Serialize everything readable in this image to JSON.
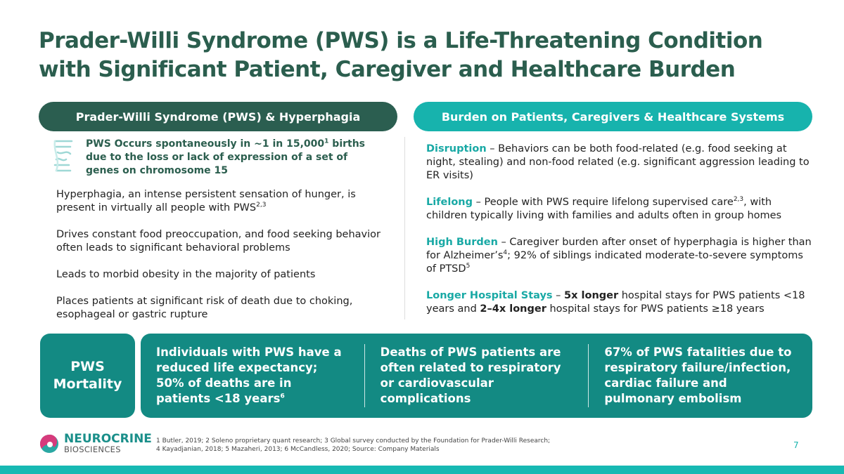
{
  "title": "Prader-Willi Syndrome (PWS) is a Life-Threatening Condition with Significant Patient, Caregiver and Healthcare Burden",
  "left": {
    "header": "Prader-Willi Syndrome (PWS) & Hyperphagia",
    "callout": {
      "pre": "PWS Occurs spontaneously in ~1 in 15,000",
      "sup": "1",
      "post": " births due to the loss or lack of expression of a set of genes on chromosome 15"
    },
    "items": [
      {
        "text": "Hyperphagia, an intense persistent sensation of hunger, is present in virtually all people with PWS",
        "sup": "2,3"
      },
      {
        "text": "Drives constant food preoccupation, and food seeking behavior often leads to significant behavioral problems"
      },
      {
        "text": "Leads to morbid obesity in the majority of patients"
      },
      {
        "text": "Places patients at significant risk of death due to choking, esophageal or gastric rupture"
      }
    ]
  },
  "right": {
    "header": "Burden on Patients, Caregivers & Healthcare Systems",
    "disruption": {
      "label": "Disruption",
      "text": " – Behaviors can be both food-related (e.g. food seeking at night, stealing) and non-food related (e.g. significant aggression leading to ER visits)"
    },
    "lifelong": {
      "label": "Lifelong",
      "t1": " – People with PWS require lifelong supervised care",
      "sup": "2,3",
      "t2": ", with children typically living with families and adults often in group homes"
    },
    "burden": {
      "label": "High Burden",
      "t1": " – Caregiver burden after onset of hyperphagia is higher than for Alzheimer’s",
      "sup1": "4",
      "t2": "; 92% of siblings indicated moderate-to-severe symptoms of PTSD",
      "sup2": "5"
    },
    "stays": {
      "label": "Longer Hospital Stays",
      "t1": " – ",
      "b1": "5x longer",
      "t2": " hospital stays for PWS patients <18 years and ",
      "b2": "2–4x longer",
      "t3": " hospital stays for PWS patients ≥18 years"
    }
  },
  "mortality": {
    "label": "PWS Mortality",
    "stat1": {
      "text": "Individuals with PWS have a reduced life expectancy; 50% of deaths are in patients <18 years",
      "sup": "6"
    },
    "stat2": "Deaths of PWS patients are often related to respiratory or cardiovascular complications",
    "stat3": "67% of PWS fatalities due to respiratory failure/infection, cardiac failure and pulmonary embolism"
  },
  "footer": {
    "logo_name": "NEUROCRINE",
    "logo_sub": "BIOSCIENCES",
    "refs1": "1 Butler, 2019; 2 Soleno proprietary quant research; 3 Global survey conducted by the Foundation for Prader-Willi Research;",
    "refs2": "4 Kayadjanian, 2018; 5 Mazaheri, 2013; 6 McCandless, 2020; Source: Company Materials",
    "page": "7"
  },
  "colors": {
    "dark_green": "#2b5e50",
    "teal": "#17b3ad",
    "mortality_teal": "#138a83"
  }
}
